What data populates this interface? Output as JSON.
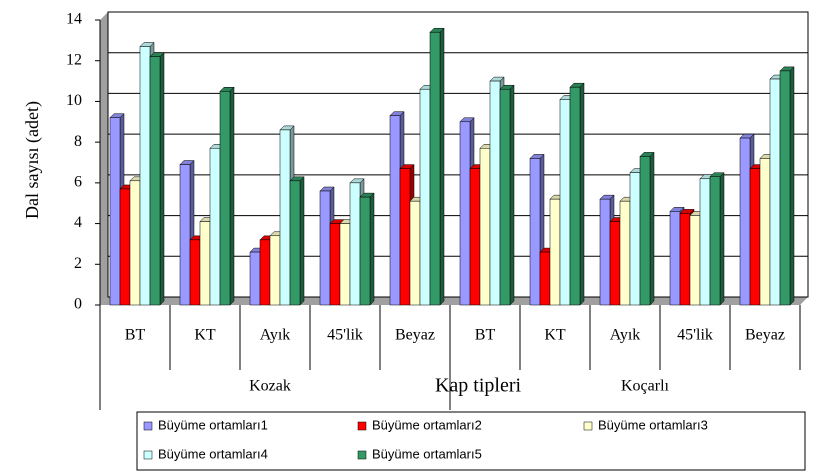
{
  "chart_data": {
    "type": "bar3d",
    "y_label": "Dal sayısı (adet)",
    "x_label": "Kap tipleri",
    "categories": [
      "BT",
      "KT",
      "Ayık",
      "45'lik",
      "Beyaz",
      "BT",
      "KT",
      "Ayık",
      "45'lik",
      "Beyaz"
    ],
    "groups": [
      "Kozak",
      "Koçarlı"
    ],
    "ylim": [
      0,
      14
    ],
    "yticks": [
      0,
      2,
      4,
      6,
      8,
      10,
      12,
      14
    ],
    "grid": true,
    "series": [
      {
        "name": "Büyüme ortamları1",
        "color": "#9999ff",
        "values": [
          9.2,
          6.9,
          2.6,
          5.6,
          9.3,
          9.0,
          7.2,
          5.2,
          4.6,
          8.2
        ]
      },
      {
        "name": "Büyüme ortamları2",
        "color": "#ff0000",
        "values": [
          5.7,
          3.2,
          3.2,
          4.0,
          6.7,
          6.7,
          2.6,
          4.1,
          4.5,
          6.7
        ]
      },
      {
        "name": "Büyüme ortamları3",
        "color": "#ffffcc",
        "values": [
          6.1,
          4.1,
          3.4,
          4.0,
          5.1,
          7.7,
          5.2,
          5.1,
          4.4,
          7.2
        ]
      },
      {
        "name": "Büyüme ortamları4",
        "color": "#ccffff",
        "values": [
          12.7,
          7.7,
          8.6,
          6.0,
          10.6,
          11.0,
          10.1,
          6.5,
          6.2,
          11.1
        ]
      },
      {
        "name": "Büyüme ortamları5",
        "color": "#339966",
        "values": [
          12.2,
          10.5,
          6.1,
          5.3,
          13.4,
          10.6,
          10.7,
          7.3,
          6.3,
          11.5
        ]
      }
    ]
  }
}
